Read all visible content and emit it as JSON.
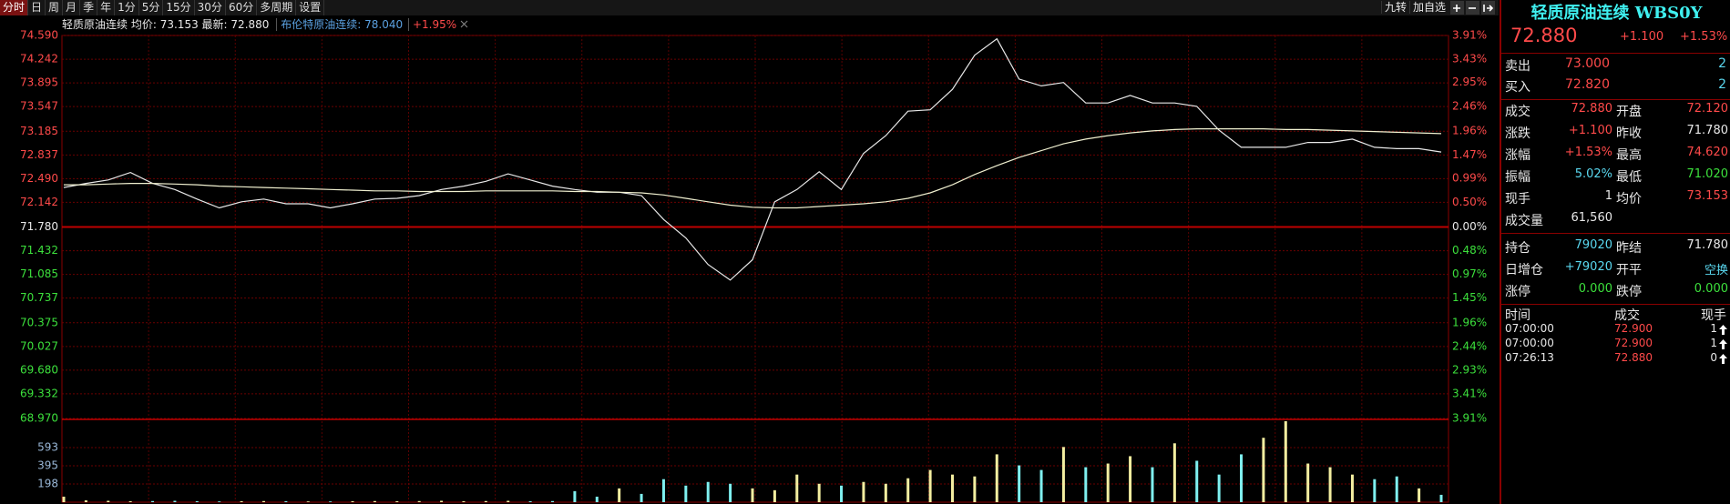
{
  "toolbar": {
    "tabs": [
      "分时",
      "日",
      "周",
      "月",
      "季",
      "年",
      "1分",
      "5分",
      "15分",
      "30分",
      "60分",
      "多周期",
      "设置"
    ],
    "tools": [
      "九转",
      "加自选"
    ]
  },
  "chart_header": {
    "name": "轻质原油连续",
    "avg_label": "均价:",
    "avg": "73.153",
    "last_label": "最新:",
    "last": "72.880",
    "compare_name": "布伦特原油连续:",
    "compare_price": "78.040",
    "compare_change": "+1.95%"
  },
  "chart_data": [
    {
      "type": "line",
      "ylim": [
        68.97,
        74.59
      ],
      "yticks": [
        {
          "value": 74.59,
          "label": "74.590"
        },
        74.242,
        73.895,
        73.547,
        73.185,
        72.837,
        {
          "value": 72.49,
          "label": "72.490"
        },
        72.142,
        {
          "value": 71.78,
          "label": "71.780"
        },
        71.432,
        71.085,
        70.737,
        70.375,
        70.027,
        {
          "value": 69.68,
          "label": "69.680"
        },
        69.332,
        {
          "value": 68.97,
          "label": "68.970"
        }
      ],
      "y2lim": [
        -3.91,
        3.91
      ],
      "y2ticks": [
        {
          "value": 3.91,
          "label": "3.91%"
        },
        {
          "value": 3.43,
          "label": "3.43%"
        },
        {
          "value": 2.95,
          "label": "2.95%"
        },
        {
          "value": 2.46,
          "label": "2.46%"
        },
        {
          "value": 1.96,
          "label": "1.96%"
        },
        {
          "value": 1.47,
          "label": "1.47%"
        },
        {
          "value": 0.99,
          "label": "0.99%"
        },
        {
          "value": 0.5,
          "label": "0.50%"
        },
        {
          "value": 0,
          "label": "0.00%"
        },
        {
          "value": -0.48,
          "label": "0.48%"
        },
        {
          "value": -0.97,
          "label": "0.97%"
        },
        {
          "value": -1.45,
          "label": "1.45%"
        },
        {
          "value": -1.96,
          "label": "1.96%"
        },
        {
          "value": -2.44,
          "label": "2.44%"
        },
        {
          "value": -2.93,
          "label": "2.93%"
        },
        {
          "value": -3.41,
          "label": "3.41%"
        },
        {
          "value": -3.91,
          "label": "3.91%"
        }
      ],
      "grid": true,
      "series": [
        {
          "color": "#e8e8e8",
          "values": [
            72.36,
            72.42,
            72.47,
            72.58,
            72.42,
            72.33,
            72.19,
            72.06,
            72.15,
            72.19,
            72.12,
            72.12,
            72.06,
            72.12,
            72.19,
            72.2,
            72.24,
            72.33,
            72.38,
            72.45,
            72.56,
            72.47,
            72.38,
            72.33,
            72.29,
            72.29,
            72.24,
            71.89,
            71.62,
            71.23,
            71.0,
            71.3,
            72.15,
            72.33,
            72.59,
            72.33,
            72.86,
            73.12,
            73.48,
            73.5,
            73.8,
            74.3,
            74.54,
            73.95,
            73.85,
            73.9,
            73.6,
            73.6,
            73.71,
            73.6,
            73.6,
            73.55,
            73.2,
            72.95,
            72.95,
            72.95,
            73.02,
            73.02,
            73.07,
            72.95,
            72.93,
            72.93,
            72.88
          ]
        },
        {
          "color": "#f0f0d0",
          "values": [
            72.4,
            72.4,
            72.41,
            72.42,
            72.42,
            72.41,
            72.4,
            72.38,
            72.37,
            72.36,
            72.35,
            72.34,
            72.33,
            72.32,
            72.31,
            72.31,
            72.3,
            72.3,
            72.3,
            72.31,
            72.31,
            72.31,
            72.31,
            72.3,
            72.3,
            72.29,
            72.28,
            72.25,
            72.2,
            72.15,
            72.1,
            72.07,
            72.06,
            72.06,
            72.08,
            72.1,
            72.12,
            72.15,
            72.2,
            72.28,
            72.4,
            72.55,
            72.68,
            72.8,
            72.9,
            73.0,
            73.07,
            73.12,
            73.16,
            73.19,
            73.21,
            73.22,
            73.22,
            73.22,
            73.22,
            73.21,
            73.21,
            73.2,
            73.19,
            73.18,
            73.17,
            73.16,
            73.15
          ]
        }
      ]
    },
    {
      "type": "bar",
      "ylim": [
        0,
        890
      ],
      "yticks": [
        198,
        395,
        593
      ],
      "up_color": "#f3eea0",
      "down_color": "#7ff0f0",
      "values": [
        60,
        20,
        15,
        10,
        12,
        15,
        10,
        8,
        10,
        12,
        10,
        8,
        8,
        10,
        12,
        10,
        12,
        15,
        10,
        12,
        15,
        10,
        12,
        120,
        60,
        150,
        90,
        250,
        180,
        220,
        200,
        150,
        130,
        300,
        200,
        180,
        220,
        200,
        260,
        350,
        300,
        280,
        520,
        400,
        350,
        600,
        380,
        420,
        500,
        380,
        640,
        450,
        300,
        520,
        700,
        880,
        420,
        380,
        300,
        250,
        280,
        150,
        80
      ]
    }
  ],
  "quote": {
    "title": "轻质原油连续 WBS0Y",
    "price": "72.880",
    "change": "+1.100",
    "change_pct": "+1.53%",
    "book": [
      {
        "label": "卖出",
        "price": "73.000",
        "volume": "2"
      },
      {
        "label": "买入",
        "price": "72.820",
        "volume": "2"
      }
    ],
    "stats": [
      [
        {
          "label": "成交",
          "value": "72.880",
          "color": "#ff4a4a"
        },
        {
          "label": "开盘",
          "value": "72.120",
          "color": "#ff4a4a"
        }
      ],
      [
        {
          "label": "涨跌",
          "value": "+1.100",
          "color": "#ff4a4a"
        },
        {
          "label": "昨收",
          "value": "71.780",
          "color": "#e8e8e8"
        }
      ],
      [
        {
          "label": "涨幅",
          "value": "+1.53%",
          "color": "#ff4a4a"
        },
        {
          "label": "最高",
          "value": "74.620",
          "color": "#ff4a4a"
        }
      ],
      [
        {
          "label": "振幅",
          "value": "5.02%",
          "color": "#5ad8f0"
        },
        {
          "label": "最低",
          "value": "71.020",
          "color": "#3ce03c"
        }
      ],
      [
        {
          "label": "现手",
          "value": "1",
          "color": "#e8e8e8"
        },
        {
          "label": "均价",
          "value": "73.153",
          "color": "#ff4a4a"
        }
      ],
      [
        {
          "label": "成交量",
          "value": "61,560",
          "color": "#e8e8e8"
        }
      ],
      [
        {
          "label": "持仓",
          "value": "79020",
          "color": "#5ad8f0"
        },
        {
          "label": "昨结",
          "value": "71.780",
          "color": "#e8e8e8"
        }
      ],
      [
        {
          "label": "日增仓",
          "value": "+79020",
          "color": "#5ad8f0"
        },
        {
          "label": "开平",
          "value": "空换",
          "color": "#5ad8f0"
        }
      ],
      [
        {
          "label": "涨停",
          "value": "0.000",
          "color": "#3ce03c"
        },
        {
          "label": "跌停",
          "value": "0.000",
          "color": "#3ce03c"
        }
      ]
    ],
    "trades_header": [
      "时间",
      "成交",
      "现手"
    ],
    "trades": [
      [
        "07:00:00",
        "72.900",
        "1"
      ],
      [
        "07:00:00",
        "72.900",
        "1"
      ],
      [
        "07:26:13",
        "72.880",
        "0"
      ]
    ]
  }
}
